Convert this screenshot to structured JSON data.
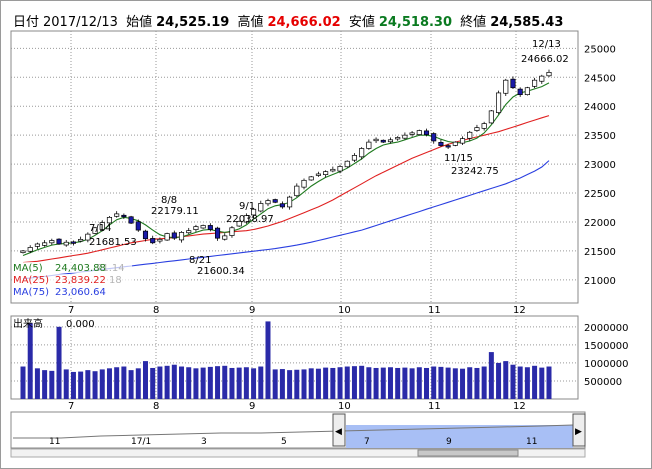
{
  "header": {
    "date_label": "日付",
    "date": "2017/12/13",
    "open_label": "始値",
    "open": "24,525.19",
    "high_label": "高値",
    "high": "24,666.02",
    "low_label": "安値",
    "low": "24,518.30",
    "close_label": "終値",
    "close": "24,585.43"
  },
  "colors": {
    "candle_up": "#ffffff",
    "candle_down": "#1a1aa8",
    "ma5": "#1f7a1f",
    "ma25": "#e02020",
    "ma75": "#2a3fe0",
    "volume": "#2a2aa8",
    "grid": "#999999",
    "overview_fill": "#a8bff5"
  },
  "chart_data": [
    {
      "type": "candlestick",
      "name": "price",
      "ylim": [
        20600,
        25300
      ],
      "y_ticks": [
        "21000",
        "21500",
        "22000",
        "22500",
        "23000",
        "23500",
        "24000",
        "24500",
        "25000"
      ],
      "x_month_labels": [
        "7",
        "8",
        "9",
        "10",
        "11",
        "12"
      ],
      "grid": "dotted",
      "legend": [
        {
          "label": "MA(5)",
          "value": "24,403.88",
          "color": "#1f7a1f"
        },
        {
          "label": "MA(25)",
          "value": "23,839.22",
          "color": "#e02020"
        },
        {
          "label": "MA(75)",
          "value": "23,060.64",
          "color": "#2a3fe0"
        }
      ],
      "annotations": [
        {
          "date": "7/14",
          "value": "21681.53"
        },
        {
          "date": "8/8",
          "value": "22179.11"
        },
        {
          "date": "9/1",
          "value": "22038.97"
        },
        {
          "date": "8/21",
          "value": "21600.34"
        },
        {
          "date": "11/15",
          "value": "23242.75"
        },
        {
          "date": "12/13",
          "value": "24666.02"
        },
        {
          "date": "",
          "value": "71.14"
        },
        {
          "date": "",
          "value": "18"
        }
      ],
      "key_points": [
        {
          "date": "7/14",
          "high": 21681.53
        },
        {
          "date": "8/8",
          "high": 22179.11
        },
        {
          "date": "8/21",
          "low": 21600.34
        },
        {
          "date": "9/1",
          "high": 22038.97
        },
        {
          "date": "11/15",
          "low": 23242.75
        },
        {
          "date": "12/13",
          "high": 24666.02
        }
      ],
      "close_series": [
        21500,
        21560,
        21620,
        21640,
        21680,
        21620,
        21650,
        21640,
        21700,
        21790,
        21900,
        21990,
        22080,
        22140,
        22090,
        21980,
        21860,
        21710,
        21640,
        21700,
        21800,
        21720,
        21820,
        21850,
        21920,
        21940,
        21870,
        21720,
        21760,
        21900,
        22010,
        22110,
        22220,
        22320,
        22370,
        22340,
        22260,
        22430,
        22620,
        22720,
        22780,
        22830,
        22870,
        22910,
        22960,
        23050,
        23150,
        23270,
        23380,
        23430,
        23380,
        23420,
        23460,
        23500,
        23540,
        23580,
        23510,
        23400,
        23320,
        23300,
        23380,
        23440,
        23550,
        23630,
        23700,
        23920,
        24230,
        24450,
        24320,
        24200,
        24320,
        24450,
        24520,
        24585
      ],
      "ma5_series": [
        21420,
        21470,
        21520,
        21560,
        21600,
        21620,
        21630,
        21640,
        21660,
        21700,
        21770,
        21850,
        21950,
        22040,
        22080,
        22060,
        22020,
        21950,
        21860,
        21780,
        21740,
        21730,
        21740,
        21780,
        21820,
        21860,
        21870,
        21840,
        21820,
        21840,
        21880,
        21950,
        22050,
        22140,
        22230,
        22280,
        22300,
        22340,
        22420,
        22520,
        22620,
        22700,
        22770,
        22820,
        22870,
        22930,
        23010,
        23090,
        23190,
        23270,
        23330,
        23360,
        23380,
        23420,
        23460,
        23500,
        23500,
        23480,
        23430,
        23390,
        23370,
        23370,
        23400,
        23450,
        23540,
        23680,
        23850,
        24030,
        24160,
        24230,
        24260,
        24300,
        24340,
        24403
      ],
      "ma25_series": [
        21300,
        21310,
        21320,
        21340,
        21360,
        21380,
        21400,
        21420,
        21440,
        21460,
        21490,
        21520,
        21550,
        21580,
        21610,
        21640,
        21660,
        21680,
        21700,
        21710,
        21720,
        21730,
        21745,
        21760,
        21775,
        21790,
        21800,
        21810,
        21820,
        21830,
        21840,
        21850,
        21870,
        21900,
        21930,
        21970,
        22010,
        22060,
        22110,
        22160,
        22210,
        22260,
        22320,
        22380,
        22450,
        22520,
        22590,
        22660,
        22730,
        22800,
        22860,
        22920,
        22980,
        23040,
        23100,
        23150,
        23200,
        23250,
        23300,
        23340,
        23380,
        23410,
        23440,
        23470,
        23500,
        23530,
        23560,
        23600,
        23640,
        23680,
        23720,
        23760,
        23800,
        23839
      ],
      "ma75_series": [
        21020,
        21030,
        21045,
        21060,
        21075,
        21090,
        21105,
        21120,
        21135,
        21150,
        21165,
        21180,
        21195,
        21210,
        21225,
        21240,
        21255,
        21270,
        21285,
        21300,
        21315,
        21330,
        21345,
        21360,
        21375,
        21390,
        21405,
        21420,
        21435,
        21450,
        21465,
        21480,
        21495,
        21510,
        21525,
        21540,
        21560,
        21580,
        21600,
        21625,
        21650,
        21680,
        21710,
        21740,
        21770,
        21800,
        21830,
        21860,
        21900,
        21940,
        21980,
        22020,
        22060,
        22100,
        22140,
        22180,
        22220,
        22260,
        22300,
        22340,
        22380,
        22420,
        22460,
        22500,
        22540,
        22580,
        22620,
        22660,
        22710,
        22760,
        22820,
        22880,
        22950,
        23060
      ]
    },
    {
      "type": "bar",
      "name": "volume",
      "title": "出来高",
      "title_value": "0.000",
      "ylim": [
        0,
        2300000
      ],
      "y_ticks": [
        "500000",
        "1000000",
        "1500000",
        "2000000"
      ],
      "x_month_labels": [
        "7",
        "8",
        "9",
        "10",
        "11",
        "12"
      ],
      "values": [
        900000,
        2100000,
        850000,
        800000,
        780000,
        2000000,
        820000,
        750000,
        760000,
        800000,
        770000,
        820000,
        850000,
        880000,
        900000,
        800000,
        850000,
        1050000,
        860000,
        900000,
        920000,
        950000,
        900000,
        880000,
        850000,
        870000,
        890000,
        910000,
        920000,
        860000,
        870000,
        880000,
        850000,
        900000,
        2150000,
        820000,
        830000,
        800000,
        810000,
        820000,
        850000,
        840000,
        870000,
        860000,
        880000,
        900000,
        910000,
        920000,
        880000,
        860000,
        870000,
        880000,
        860000,
        870000,
        850000,
        880000,
        860000,
        900000,
        890000,
        870000,
        850000,
        840000,
        880000,
        860000,
        900000,
        1300000,
        1000000,
        1050000,
        950000,
        900000,
        880000,
        920000,
        870000,
        900000
      ]
    },
    {
      "type": "area",
      "name": "overview",
      "x_labels": [
        "11",
        "17/1",
        "3",
        "5",
        "7",
        "9",
        "11"
      ],
      "series": []
    }
  ]
}
